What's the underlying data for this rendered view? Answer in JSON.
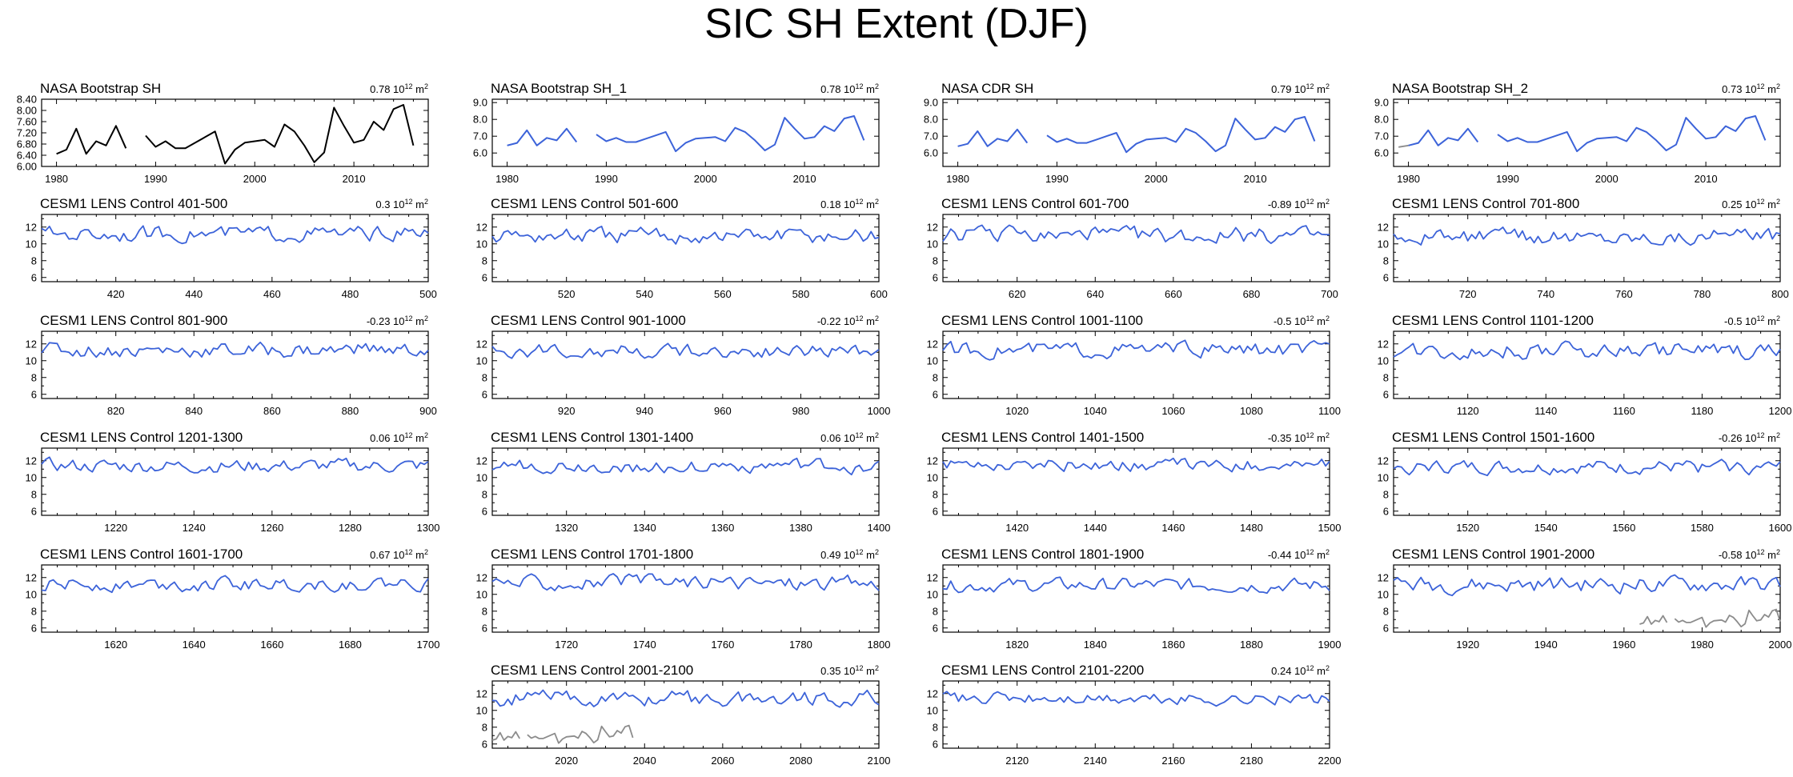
{
  "title": "SIC SH Extent (DJF)",
  "trend_unit": "10",
  "trend_exp": "12",
  "trend_suffix": "m",
  "trend_suffix_exp": "2",
  "colors": {
    "obs": "#000000",
    "model": "#3c63d9",
    "overlay": "#8c8c8c",
    "axis": "#000000"
  },
  "chart_data": [
    {
      "type": "line",
      "title": "NASA Bootstrap SH",
      "trend": "0.78",
      "kind": "obs",
      "line_color": "#000000",
      "xlim": [
        1978.5,
        2017.5
      ],
      "ylim": [
        6.0,
        8.4
      ],
      "yticks": [
        6.0,
        6.4,
        6.8,
        7.2,
        7.6,
        8.0,
        8.4
      ],
      "ytick_labels": [
        "6.00",
        "6.40",
        "6.80",
        "7.20",
        "7.60",
        "8.00",
        "8.40"
      ],
      "xticks": [
        1980,
        1990,
        2000,
        2010
      ],
      "xtick_labels": [
        "1980",
        "1990",
        "2000",
        "2010"
      ],
      "segments": [
        {
          "x": [
            1980,
            1981,
            1982,
            1983,
            1984,
            1985,
            1986,
            1987
          ],
          "y": [
            6.45,
            6.6,
            7.35,
            6.45,
            6.9,
            6.75,
            7.45,
            6.65
          ]
        },
        {
          "x": [
            1989,
            1990,
            1991,
            1992,
            1993,
            1994,
            1995,
            1996,
            1997,
            1998,
            1999,
            2000,
            2001,
            2002,
            2003,
            2004,
            2005,
            2006,
            2007,
            2008,
            2009,
            2010,
            2011,
            2012,
            2013,
            2014,
            2015,
            2016
          ],
          "y": [
            7.1,
            6.7,
            6.9,
            6.65,
            6.65,
            6.85,
            7.05,
            7.25,
            6.1,
            6.6,
            6.85,
            6.9,
            6.95,
            6.7,
            7.5,
            7.25,
            6.75,
            6.15,
            6.5,
            8.1,
            7.45,
            6.85,
            6.95,
            7.6,
            7.3,
            8.05,
            8.2,
            6.75
          ]
        }
      ]
    },
    {
      "type": "line",
      "title": "NASA Bootstrap SH_1",
      "trend": "0.78",
      "kind": "obs",
      "line_color": "#3c63d9",
      "xlim": [
        1978.5,
        2017.5
      ],
      "ylim": [
        5.2,
        9.2
      ],
      "yticks": [
        6.0,
        7.0,
        8.0,
        9.0
      ],
      "ytick_labels": [
        "6.0",
        "7.0",
        "8.0",
        "9.0"
      ],
      "xticks": [
        1980,
        1990,
        2000,
        2010
      ],
      "xtick_labels": [
        "1980",
        "1990",
        "2000",
        "2010"
      ],
      "segments": [
        {
          "x": [
            1980,
            1981,
            1982,
            1983,
            1984,
            1985,
            1986,
            1987
          ],
          "y": [
            6.45,
            6.6,
            7.35,
            6.45,
            6.9,
            6.75,
            7.45,
            6.65
          ]
        },
        {
          "x": [
            1989,
            1990,
            1991,
            1992,
            1993,
            1994,
            1995,
            1996,
            1997,
            1998,
            1999,
            2000,
            2001,
            2002,
            2003,
            2004,
            2005,
            2006,
            2007,
            2008,
            2009,
            2010,
            2011,
            2012,
            2013,
            2014,
            2015,
            2016
          ],
          "y": [
            7.1,
            6.7,
            6.9,
            6.65,
            6.65,
            6.85,
            7.05,
            7.25,
            6.1,
            6.6,
            6.85,
            6.9,
            6.95,
            6.7,
            7.5,
            7.25,
            6.75,
            6.15,
            6.5,
            8.1,
            7.45,
            6.85,
            6.95,
            7.6,
            7.3,
            8.05,
            8.2,
            6.75
          ]
        }
      ]
    },
    {
      "type": "line",
      "title": "NASA CDR SH",
      "trend": "0.79",
      "kind": "obs",
      "line_color": "#3c63d9",
      "xlim": [
        1978.5,
        2017.5
      ],
      "ylim": [
        5.2,
        9.2
      ],
      "yticks": [
        6.0,
        7.0,
        8.0,
        9.0
      ],
      "ytick_labels": [
        "6.0",
        "7.0",
        "8.0",
        "9.0"
      ],
      "xticks": [
        1980,
        1990,
        2000,
        2010
      ],
      "xtick_labels": [
        "1980",
        "1990",
        "2000",
        "2010"
      ],
      "segments": [
        {
          "x": [
            1980,
            1981,
            1982,
            1983,
            1984,
            1985,
            1986,
            1987
          ],
          "y": [
            6.4,
            6.55,
            7.3,
            6.4,
            6.85,
            6.7,
            7.4,
            6.6
          ]
        },
        {
          "x": [
            1989,
            1990,
            1991,
            1992,
            1993,
            1994,
            1995,
            1996,
            1997,
            1998,
            1999,
            2000,
            2001,
            2002,
            2003,
            2004,
            2005,
            2006,
            2007,
            2008,
            2009,
            2010,
            2011,
            2012,
            2013,
            2014,
            2015,
            2016
          ],
          "y": [
            7.05,
            6.65,
            6.85,
            6.6,
            6.6,
            6.8,
            7.0,
            7.2,
            6.05,
            6.55,
            6.8,
            6.85,
            6.9,
            6.65,
            7.45,
            7.2,
            6.7,
            6.1,
            6.45,
            8.05,
            7.4,
            6.8,
            6.9,
            7.55,
            7.25,
            8.0,
            8.15,
            6.7
          ]
        }
      ]
    },
    {
      "type": "line",
      "title": "NASA Bootstrap SH_2",
      "trend": "0.73",
      "kind": "obs",
      "line_color": "#3c63d9",
      "xlim": [
        1978.5,
        2017.5
      ],
      "ylim": [
        5.2,
        9.2
      ],
      "yticks": [
        6.0,
        7.0,
        8.0,
        9.0
      ],
      "ytick_labels": [
        "6.0",
        "7.0",
        "8.0",
        "9.0"
      ],
      "xticks": [
        1980,
        1990,
        2000,
        2010
      ],
      "xtick_labels": [
        "1980",
        "1990",
        "2000",
        "2010"
      ],
      "pre_segment": {
        "x": [
          1979,
          1980
        ],
        "y": [
          6.35,
          6.45
        ],
        "color": "#8c8c8c"
      },
      "segments": [
        {
          "x": [
            1980,
            1981,
            1982,
            1983,
            1984,
            1985,
            1986,
            1987
          ],
          "y": [
            6.45,
            6.6,
            7.35,
            6.45,
            6.9,
            6.75,
            7.45,
            6.65
          ]
        },
        {
          "x": [
            1989,
            1990,
            1991,
            1992,
            1993,
            1994,
            1995,
            1996,
            1997,
            1998,
            1999,
            2000,
            2001,
            2002,
            2003,
            2004,
            2005,
            2006,
            2007,
            2008,
            2009,
            2010,
            2011,
            2012,
            2013,
            2014,
            2015,
            2016
          ],
          "y": [
            7.1,
            6.7,
            6.9,
            6.65,
            6.65,
            6.85,
            7.05,
            7.25,
            6.1,
            6.6,
            6.85,
            6.9,
            6.95,
            6.7,
            7.5,
            7.25,
            6.75,
            6.15,
            6.5,
            8.1,
            7.45,
            6.85,
            6.95,
            7.6,
            7.3,
            8.05,
            8.2,
            6.75
          ]
        }
      ]
    },
    {
      "type": "line",
      "title": "CESM1 LENS Control 401-500",
      "trend": "0.3",
      "kind": "model",
      "start": 401,
      "end": 500,
      "seed": 401,
      "mean": 11.2,
      "amp": 0.55,
      "xticks": [
        420,
        440,
        460,
        480,
        500
      ]
    },
    {
      "type": "line",
      "title": "CESM1 LENS Control 501-600",
      "trend": "0.18",
      "kind": "model",
      "start": 501,
      "end": 600,
      "seed": 501,
      "mean": 10.9,
      "amp": 0.6,
      "xticks": [
        520,
        540,
        560,
        580,
        600
      ]
    },
    {
      "type": "line",
      "title": "CESM1 LENS Control 601-700",
      "trend": "-0.89",
      "kind": "model",
      "start": 601,
      "end": 700,
      "seed": 601,
      "mean": 11.0,
      "amp": 0.6,
      "xticks": [
        620,
        640,
        660,
        680,
        700
      ]
    },
    {
      "type": "line",
      "title": "CESM1 LENS Control 701-800",
      "trend": "0.25",
      "kind": "model",
      "start": 701,
      "end": 800,
      "seed": 701,
      "mean": 10.9,
      "amp": 0.55,
      "xticks": [
        720,
        740,
        760,
        780,
        800
      ]
    },
    {
      "type": "line",
      "title": "CESM1 LENS Control 801-900",
      "trend": "-0.23",
      "kind": "model",
      "start": 801,
      "end": 900,
      "seed": 801,
      "mean": 11.3,
      "amp": 0.55,
      "xticks": [
        820,
        840,
        860,
        880,
        900
      ]
    },
    {
      "type": "line",
      "title": "CESM1 LENS Control 901-1000",
      "trend": "-0.22",
      "kind": "model",
      "start": 901,
      "end": 1000,
      "seed": 901,
      "mean": 11.2,
      "amp": 0.5,
      "xticks": [
        920,
        940,
        960,
        980,
        1000
      ]
    },
    {
      "type": "line",
      "title": "CESM1 LENS Control 1001-1100",
      "trend": "-0.5",
      "kind": "model",
      "start": 1001,
      "end": 1100,
      "seed": 1001,
      "mean": 11.3,
      "amp": 0.55,
      "xticks": [
        1020,
        1040,
        1060,
        1080,
        1100
      ]
    },
    {
      "type": "line",
      "title": "CESM1 LENS Control 1101-1200",
      "trend": "-0.5",
      "kind": "model",
      "start": 1101,
      "end": 1200,
      "seed": 1101,
      "mean": 11.2,
      "amp": 0.6,
      "xticks": [
        1120,
        1140,
        1160,
        1180,
        1200
      ]
    },
    {
      "type": "line",
      "title": "CESM1 LENS Control 1201-1300",
      "trend": "0.06",
      "kind": "model",
      "start": 1201,
      "end": 1300,
      "seed": 1201,
      "mean": 11.4,
      "amp": 0.5,
      "xticks": [
        1220,
        1240,
        1260,
        1280,
        1300
      ]
    },
    {
      "type": "line",
      "title": "CESM1 LENS Control 1301-1400",
      "trend": "0.06",
      "kind": "model",
      "start": 1301,
      "end": 1400,
      "seed": 1301,
      "mean": 11.3,
      "amp": 0.5,
      "xticks": [
        1320,
        1340,
        1360,
        1380,
        1400
      ]
    },
    {
      "type": "line",
      "title": "CESM1 LENS Control 1401-1500",
      "trend": "-0.35",
      "kind": "model",
      "start": 1401,
      "end": 1500,
      "seed": 1401,
      "mean": 11.5,
      "amp": 0.45,
      "xticks": [
        1420,
        1440,
        1460,
        1480,
        1500
      ]
    },
    {
      "type": "line",
      "title": "CESM1 LENS Control 1501-1600",
      "trend": "-0.26",
      "kind": "model",
      "start": 1501,
      "end": 1600,
      "seed": 1501,
      "mean": 11.2,
      "amp": 0.5,
      "xticks": [
        1520,
        1540,
        1560,
        1580,
        1600
      ]
    },
    {
      "type": "line",
      "title": "CESM1 LENS Control 1601-1700",
      "trend": "0.67",
      "kind": "model",
      "start": 1601,
      "end": 1700,
      "seed": 1601,
      "mean": 11.2,
      "amp": 0.5,
      "xticks": [
        1620,
        1640,
        1660,
        1680,
        1700
      ]
    },
    {
      "type": "line",
      "title": "CESM1 LENS Control 1701-1800",
      "trend": "0.49",
      "kind": "model",
      "start": 1701,
      "end": 1800,
      "seed": 1701,
      "mean": 11.4,
      "amp": 0.55,
      "xticks": [
        1720,
        1740,
        1760,
        1780,
        1800
      ]
    },
    {
      "type": "line",
      "title": "CESM1 LENS Control 1801-1900",
      "trend": "-0.44",
      "kind": "model",
      "start": 1801,
      "end": 1900,
      "seed": 1801,
      "mean": 11.1,
      "amp": 0.5,
      "xticks": [
        1820,
        1840,
        1860,
        1880,
        1900
      ]
    },
    {
      "type": "line",
      "title": "CESM1 LENS Control 1901-2000",
      "trend": "-0.58",
      "kind": "model",
      "start": 1901,
      "end": 2000,
      "seed": 1901,
      "mean": 11.2,
      "amp": 0.6,
      "xticks": [
        1920,
        1940,
        1960,
        1980,
        2000
      ],
      "overlay": "obs_end"
    },
    {
      "type": "line",
      "title": "CESM1 LENS Control 2001-2100",
      "trend": "0.35",
      "kind": "model",
      "start": 2001,
      "end": 2100,
      "seed": 2001,
      "mean": 11.4,
      "amp": 0.55,
      "xticks": [
        2020,
        2040,
        2060,
        2080,
        2100
      ],
      "overlay": "obs_start"
    },
    {
      "type": "line",
      "title": "CESM1 LENS Control 2101-2200",
      "trend": "0.24",
      "kind": "model",
      "start": 2101,
      "end": 2200,
      "seed": 2101,
      "mean": 11.4,
      "amp": 0.45,
      "xticks": [
        2120,
        2140,
        2160,
        2180,
        2200
      ]
    }
  ],
  "model_yaxis": {
    "ylim": [
      5.5,
      13.5
    ],
    "yticks": [
      6,
      8,
      10,
      12
    ],
    "ytick_labels": [
      "6",
      "8",
      "10",
      "12"
    ]
  }
}
